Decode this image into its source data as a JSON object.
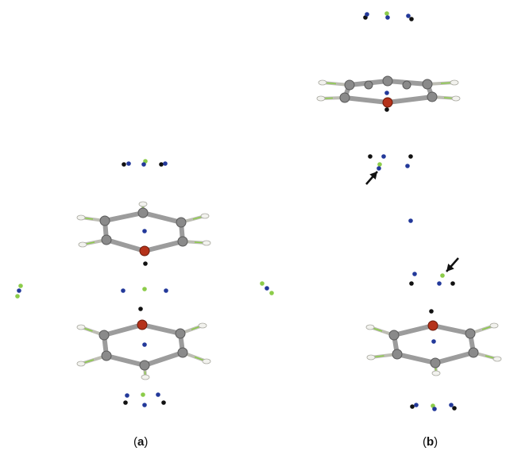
{
  "figure": {
    "panels": [
      {
        "id": "a",
        "letter": "a"
      },
      {
        "id": "b",
        "letter": "b"
      }
    ]
  },
  "colors": {
    "carbon": "#8a8a8a",
    "carbon_dark": "#5a5a5a",
    "hydrogen": "#f2f2ee",
    "hydrogen_edge": "#a9a9a0",
    "oxygen": "#b5321a",
    "blue_site": "#23399a",
    "green_site": "#8ccc4a",
    "black_site": "#111111",
    "arrow": "#111111"
  },
  "icons": [
    "arrow-icon",
    "arrow-icon"
  ]
}
